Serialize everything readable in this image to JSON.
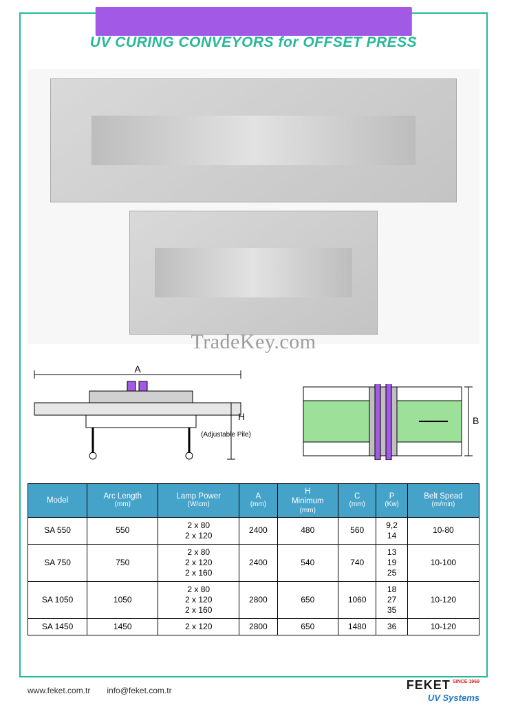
{
  "colors": {
    "accent_green": "#25b89a",
    "header_purple": "#a259e6",
    "table_header_blue": "#45a2c9",
    "diagram_green": "#9de09a",
    "diagram_purple": "#a259e6",
    "brand_blue": "#1f7ac4"
  },
  "title": "UV CURING CONVEYORS for OFFSET PRESS",
  "watermark": "TradeKey.com",
  "diagram_side": {
    "labels": {
      "A": "A",
      "H": "H",
      "pile_note": "(Adjustable Pile)"
    }
  },
  "diagram_top": {
    "labels": {
      "B": "B"
    }
  },
  "table": {
    "columns": [
      {
        "label": "Model",
        "sub": ""
      },
      {
        "label": "Arc Length",
        "sub": "(mm)"
      },
      {
        "label": "Lamp Power",
        "sub": "(W/cm)"
      },
      {
        "label": "A",
        "sub": "(mm)"
      },
      {
        "label": "H\nMinimum",
        "sub": "(mm)"
      },
      {
        "label": "C",
        "sub": "(mm)"
      },
      {
        "label": "P",
        "sub": "(Kw)"
      },
      {
        "label": "Belt Spead",
        "sub": "(m/min)"
      }
    ],
    "rows": [
      {
        "model": "SA 550",
        "arc": "550",
        "lamp": "2 x 80\n2 x 120",
        "a": "2400",
        "h": "480",
        "c": "560",
        "p": "9,2\n14",
        "belt": "10-80"
      },
      {
        "model": "SA 750",
        "arc": "750",
        "lamp": "2 x 80\n2 x 120\n2 x 160",
        "a": "2400",
        "h": "540",
        "c": "740",
        "p": "13\n19\n25",
        "belt": "10-100"
      },
      {
        "model": "SA 1050",
        "arc": "1050",
        "lamp": "2 x 80\n2 x 120\n2 x 160",
        "a": "2800",
        "h": "650",
        "c": "1060",
        "p": "18\n27\n35",
        "belt": "10-120"
      },
      {
        "model": "SA 1450",
        "arc": "1450",
        "lamp": "2 x 120",
        "a": "2800",
        "h": "650",
        "c": "1480",
        "p": "36",
        "belt": "10-120"
      }
    ]
  },
  "footer": {
    "website": "www.feket.com.tr",
    "email": "info@feket.com.tr",
    "brand": "FEKET",
    "since": "SINCE 1969",
    "subtitle": "UV Systems"
  }
}
